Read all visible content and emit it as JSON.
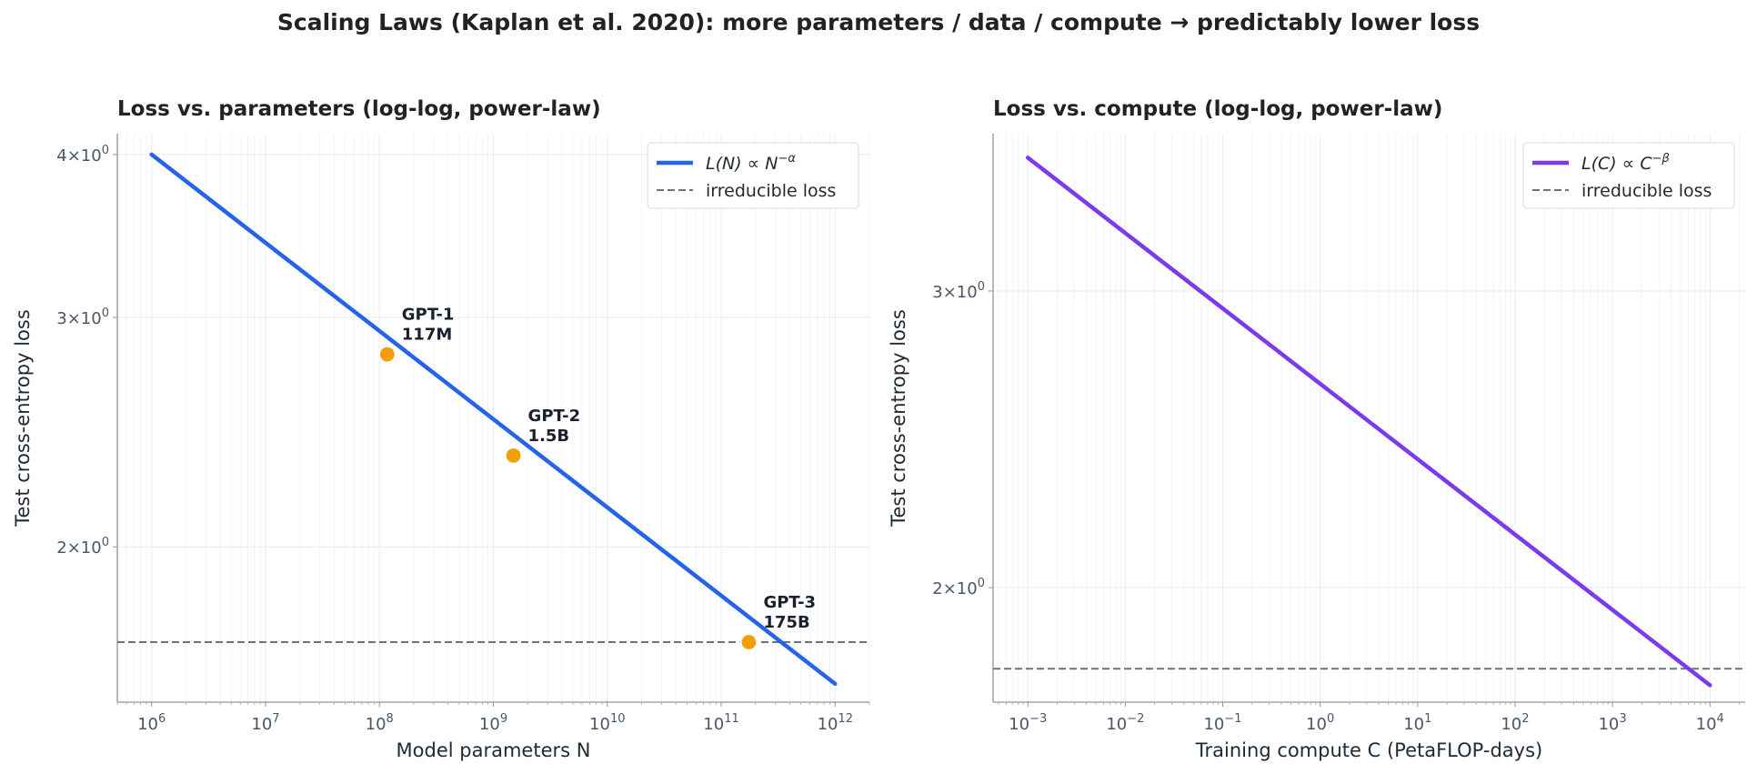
{
  "title": "Scaling Laws (Kaplan et al. 2020):  more parameters / data / compute →  predictably lower loss",
  "chart_data": [
    {
      "type": "line",
      "title": "Loss vs. parameters (log-log, power-law)",
      "xlabel": "Model parameters  N",
      "ylabel": "Test cross-entropy loss",
      "xscale": "log",
      "yscale": "log",
      "xlim": [
        500000.0,
        2000000000000.0
      ],
      "ylim": [
        1.52,
        4.15
      ],
      "x_ticks": [
        {
          "value": 1000000.0,
          "base": "10",
          "exp": "6"
        },
        {
          "value": 10000000.0,
          "base": "10",
          "exp": "7"
        },
        {
          "value": 100000000.0,
          "base": "10",
          "exp": "8"
        },
        {
          "value": 1000000000.0,
          "base": "10",
          "exp": "9"
        },
        {
          "value": 10000000000.0,
          "base": "10",
          "exp": "10"
        },
        {
          "value": 100000000000.0,
          "base": "10",
          "exp": "11"
        },
        {
          "value": 1000000000000.0,
          "base": "10",
          "exp": "12"
        }
      ],
      "y_ticks": [
        {
          "value": 4,
          "base": "4×10",
          "exp": "0"
        },
        {
          "value": 3,
          "base": "3×10",
          "exp": "0"
        },
        {
          "value": 2,
          "base": "2×10",
          "exp": "0"
        }
      ],
      "grid": true,
      "legend_position": "top-right",
      "series": [
        {
          "name_parts": [
            "L(N) ∝ N",
            "−α"
          ],
          "color": "#2563eb",
          "style": "solid",
          "x": [
            1000000.0,
            1000000000000.0
          ],
          "y": [
            4.0,
            1.57
          ]
        }
      ],
      "hline": {
        "name": "irreducible loss",
        "y": 1.69,
        "color": "#6b7280",
        "style": "dashed"
      },
      "points": [
        {
          "label_line1": "GPT-1",
          "label_line2": "117M",
          "x": 117000000.0,
          "y": 2.81
        },
        {
          "label_line1": "GPT-2",
          "label_line2": "1.5B",
          "x": 1500000000.0,
          "y": 2.35
        },
        {
          "label_line1": "GPT-3",
          "label_line2": "175B",
          "x": 175000000000.0,
          "y": 1.69
        }
      ],
      "point_color": "#f59e0b"
    },
    {
      "type": "line",
      "title": "Loss vs. compute (log-log, power-law)",
      "xlabel": "Training compute  C  (PetaFLOP-days)",
      "ylabel": "Test cross-entropy loss",
      "xscale": "log",
      "yscale": "log",
      "xlim": [
        0.00044,
        23000.0
      ],
      "ylim": [
        1.71,
        3.72
      ],
      "x_ticks": [
        {
          "value": 0.001,
          "base": "10",
          "exp": "−3"
        },
        {
          "value": 0.01,
          "base": "10",
          "exp": "−2"
        },
        {
          "value": 0.1,
          "base": "10",
          "exp": "−1"
        },
        {
          "value": 1,
          "base": "10",
          "exp": "0"
        },
        {
          "value": 10,
          "base": "10",
          "exp": "1"
        },
        {
          "value": 100,
          "base": "10",
          "exp": "2"
        },
        {
          "value": 1000,
          "base": "10",
          "exp": "3"
        },
        {
          "value": 10000,
          "base": "10",
          "exp": "4"
        }
      ],
      "y_ticks": [
        {
          "value": 3,
          "base": "3×10",
          "exp": "0"
        },
        {
          "value": 2,
          "base": "2×10",
          "exp": "0"
        }
      ],
      "grid": true,
      "legend_position": "top-right",
      "series": [
        {
          "name_parts": [
            "L(C) ∝ C",
            "−β"
          ],
          "color": "#7c3aed",
          "style": "solid",
          "x": [
            0.001,
            10000.0
          ],
          "y": [
            3.6,
            1.75
          ]
        }
      ],
      "hline": {
        "name": "irreducible loss",
        "y": 1.79,
        "color": "#6b7280",
        "style": "dashed"
      }
    }
  ]
}
